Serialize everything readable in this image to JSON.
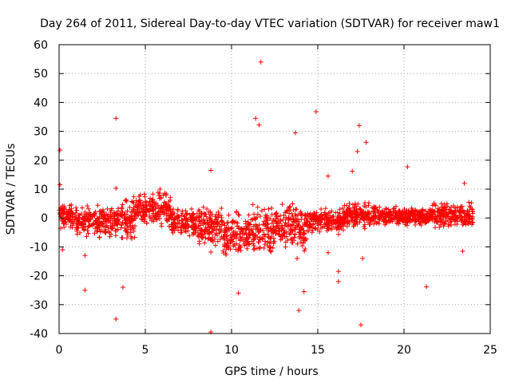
{
  "chart_data": {
    "type": "scatter",
    "title": "Day 264 of 2011, Sidereal Day-to-day VTEC variation (SDTVAR) for receiver maw1",
    "xlabel": "GPS time / hours",
    "ylabel": "SDTVAR / TECUs",
    "xlim": [
      0,
      25
    ],
    "ylim": [
      -40,
      60
    ],
    "xticks": [
      "0",
      "5",
      "10",
      "15",
      "20",
      "25"
    ],
    "yticks": [
      "-40",
      "-30",
      "-20",
      "-10",
      "0",
      "10",
      "20",
      "30",
      "40",
      "50",
      "60"
    ],
    "grid": true,
    "marker": "+",
    "color": "#ff0000",
    "series": [
      {
        "name": "SDTVAR",
        "outliers": [
          [
            0.05,
            23.5
          ],
          [
            0.05,
            11.5
          ],
          [
            0.2,
            -11
          ],
          [
            1.5,
            -13
          ],
          [
            1.5,
            -25
          ],
          [
            3.3,
            34.5
          ],
          [
            3.3,
            10.3
          ],
          [
            3.3,
            -35
          ],
          [
            3.7,
            -24
          ],
          [
            8.8,
            16.5
          ],
          [
            8.8,
            -11.8
          ],
          [
            8.8,
            -39.5
          ],
          [
            10.4,
            -26
          ],
          [
            11.4,
            34.5
          ],
          [
            11.6,
            32.2
          ],
          [
            11.7,
            54
          ],
          [
            13.7,
            29.5
          ],
          [
            13.8,
            -14
          ],
          [
            13.9,
            -32
          ],
          [
            14.2,
            -25.5
          ],
          [
            14.9,
            36.8
          ],
          [
            15.6,
            14.5
          ],
          [
            15.6,
            -12
          ],
          [
            16.2,
            -18.5
          ],
          [
            16.2,
            -22
          ],
          [
            17.0,
            16.2
          ],
          [
            17.3,
            23
          ],
          [
            17.4,
            32
          ],
          [
            17.5,
            -37
          ],
          [
            17.6,
            -14
          ],
          [
            17.8,
            26.2
          ],
          [
            20.2,
            17.7
          ],
          [
            21.3,
            -23.8
          ],
          [
            23.4,
            -11.5
          ],
          [
            23.5,
            12
          ]
        ],
        "bands": [
          {
            "x_start": 0.0,
            "x_end": 1.0,
            "y_center": 0.5,
            "y_spread": 4
          },
          {
            "x_start": 1.0,
            "x_end": 3.5,
            "y_center": -1,
            "y_spread": 5
          },
          {
            "x_start": 3.5,
            "x_end": 4.5,
            "y_center": 0,
            "y_spread": 7
          },
          {
            "x_start": 4.5,
            "x_end": 5.3,
            "y_center": 3,
            "y_spread": 5
          },
          {
            "x_start": 5.3,
            "x_end": 6.5,
            "y_center": 3,
            "y_spread": 6
          },
          {
            "x_start": 6.5,
            "x_end": 8.0,
            "y_center": -2,
            "y_spread": 5
          },
          {
            "x_start": 8.0,
            "x_end": 9.5,
            "y_center": -3,
            "y_spread": 7
          },
          {
            "x_start": 9.5,
            "x_end": 11.0,
            "y_center": -6,
            "y_spread": 7
          },
          {
            "x_start": 11.0,
            "x_end": 12.5,
            "y_center": -4,
            "y_spread": 9
          },
          {
            "x_start": 12.5,
            "x_end": 14.5,
            "y_center": -3,
            "y_spread": 8
          },
          {
            "x_start": 14.5,
            "x_end": 16.5,
            "y_center": -1,
            "y_spread": 4
          },
          {
            "x_start": 16.5,
            "x_end": 18.5,
            "y_center": 1,
            "y_spread": 4
          },
          {
            "x_start": 18.5,
            "x_end": 21.5,
            "y_center": 0.5,
            "y_spread": 3
          },
          {
            "x_start": 21.5,
            "x_end": 24.0,
            "y_center": 1,
            "y_spread": 4
          }
        ]
      }
    ]
  }
}
